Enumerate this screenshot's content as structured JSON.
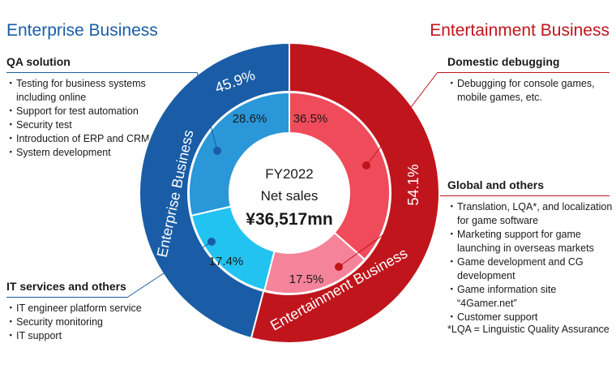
{
  "left_title": "Enterprise Business",
  "right_title": "Entertainment Business",
  "qa": {
    "title": "QA solution",
    "items": [
      "Testing for business systems\nincluding online",
      "Support for test automation",
      "Security test",
      "Introduction of ERP and CRM",
      "System development"
    ]
  },
  "it": {
    "title": "IT services and others",
    "items": [
      "IT engineer platform service",
      "Security monitoring",
      "IT support"
    ]
  },
  "domestic": {
    "title": "Domestic debugging",
    "items": [
      "Debugging for console games,\nmobile games, etc."
    ]
  },
  "global": {
    "title": "Global and others",
    "items": [
      "Translation, LQA*, and localization\nfor game software",
      "Marketing support for game\nlaunching in overseas markets",
      "Game development and CG\ndevelopment",
      "Game information site “4Gamer.net”",
      "Customer support"
    ]
  },
  "footnote": "*LQA = Linguistic Quality Assurance",
  "center": {
    "line1": "FY2022",
    "line2": "Net sales",
    "line3": "¥36,517mn"
  },
  "colors": {
    "enterprise_dark": "#1a5da6",
    "enterprise_mid": "#2a97d8",
    "enterprise_light": "#22c3f0",
    "entertainment_dark": "#c0151c",
    "entertainment_mid": "#ef4b5a",
    "entertainment_light": "#f5849a"
  },
  "chart_data": {
    "type": "pie",
    "title": "FY2022 Net sales",
    "outer_ring": [
      {
        "name": "Entertainment Business",
        "value": 54.1,
        "label": "54.1%"
      },
      {
        "name": "Enterprise Business",
        "value": 45.9,
        "label": "45.9%"
      }
    ],
    "inner_ring": [
      {
        "name": "Domestic debugging",
        "value": 36.5,
        "label": "36.5%"
      },
      {
        "name": "Global and others",
        "value": 17.5,
        "label": "17.5%"
      },
      {
        "name": "IT services and others",
        "value": 17.4,
        "label": "17.4%"
      },
      {
        "name": "QA solution",
        "value": 28.6,
        "label": "28.6%"
      }
    ]
  }
}
